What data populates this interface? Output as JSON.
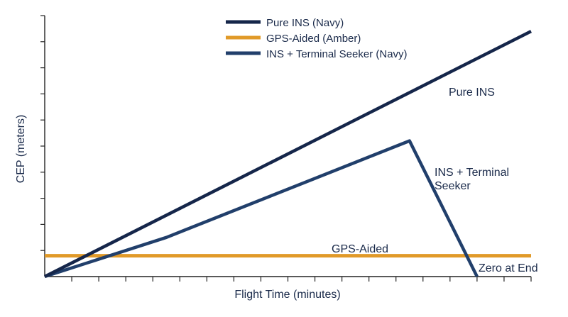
{
  "chart_data": {
    "type": "line",
    "xlabel": "Flight Time (minutes)",
    "ylabel": "CEP (meters)",
    "xlim": [
      0,
      18
    ],
    "ylim": [
      0,
      10
    ],
    "x_ticks": 18,
    "y_ticks": 10,
    "grid": false,
    "legend_position": "top-center",
    "series": [
      {
        "name": "Pure INS (Navy)",
        "color": "#15264a",
        "points": [
          [
            0,
            0
          ],
          [
            18,
            9.4
          ]
        ],
        "annotation": "Pure INS"
      },
      {
        "name": "GPS-Aided (Amber)",
        "color": "#e19a29",
        "points": [
          [
            0,
            0.8
          ],
          [
            18,
            0.8
          ]
        ],
        "annotation": "GPS-Aided"
      },
      {
        "name": "INS + Terminal Seeker (Navy)",
        "color": "#213f6b",
        "points": [
          [
            0,
            0
          ],
          [
            4.5,
            1.5
          ],
          [
            13.5,
            5.2
          ],
          [
            16,
            0
          ]
        ],
        "annotation": "INS + Terminal Seeker",
        "end_annotation": "Zero at End"
      }
    ]
  }
}
